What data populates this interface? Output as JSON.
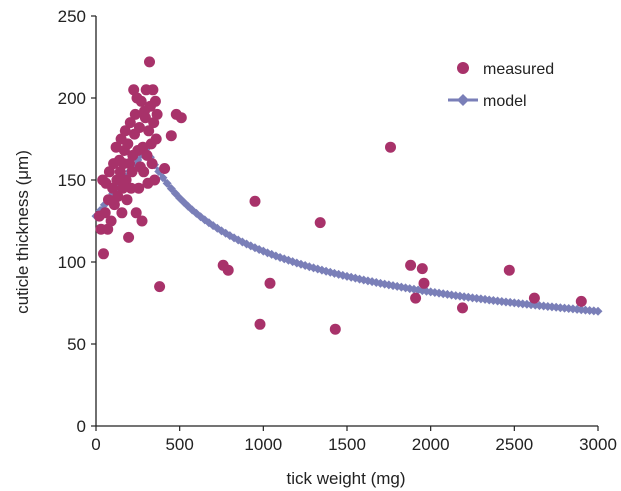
{
  "chart_data": {
    "type": "scatter",
    "xlabel": "tick weight (mg)",
    "ylabel": "cuticle thickness (μm)",
    "xlim": [
      0,
      3000
    ],
    "ylim": [
      0,
      250
    ],
    "xticks": [
      "0",
      "500",
      "1000",
      "1500",
      "2000",
      "2500",
      "3000"
    ],
    "yticks": [
      "0",
      "50",
      "100",
      "150",
      "200",
      "250"
    ],
    "grid": false,
    "legend_position": "top-right",
    "colors": {
      "measured": "#a8326a",
      "model": "#7a7fb8"
    },
    "series": [
      {
        "name": "measured",
        "kind": "scatter",
        "points": [
          [
            20,
            128
          ],
          [
            30,
            120
          ],
          [
            40,
            150
          ],
          [
            45,
            105
          ],
          [
            55,
            130
          ],
          [
            60,
            148
          ],
          [
            70,
            120
          ],
          [
            75,
            138
          ],
          [
            80,
            155
          ],
          [
            90,
            125
          ],
          [
            100,
            145
          ],
          [
            105,
            160
          ],
          [
            110,
            135
          ],
          [
            120,
            170
          ],
          [
            125,
            150
          ],
          [
            130,
            140
          ],
          [
            140,
            162
          ],
          [
            145,
            155
          ],
          [
            150,
            175
          ],
          [
            155,
            130
          ],
          [
            160,
            145
          ],
          [
            165,
            160
          ],
          [
            170,
            168
          ],
          [
            175,
            180
          ],
          [
            180,
            150
          ],
          [
            185,
            138
          ],
          [
            190,
            172
          ],
          [
            195,
            115
          ],
          [
            200,
            160
          ],
          [
            205,
            185
          ],
          [
            210,
            145
          ],
          [
            215,
            155
          ],
          [
            220,
            165
          ],
          [
            225,
            205
          ],
          [
            230,
            178
          ],
          [
            235,
            190
          ],
          [
            240,
            130
          ],
          [
            245,
            200
          ],
          [
            250,
            168
          ],
          [
            255,
            145
          ],
          [
            260,
            182
          ],
          [
            265,
            158
          ],
          [
            270,
            198
          ],
          [
            275,
            125
          ],
          [
            280,
            170
          ],
          [
            285,
            155
          ],
          [
            290,
            192
          ],
          [
            295,
            188
          ],
          [
            300,
            205
          ],
          [
            305,
            165
          ],
          [
            310,
            148
          ],
          [
            315,
            180
          ],
          [
            320,
            222
          ],
          [
            325,
            195
          ],
          [
            330,
            172
          ],
          [
            335,
            160
          ],
          [
            340,
            205
          ],
          [
            345,
            185
          ],
          [
            350,
            150
          ],
          [
            355,
            198
          ],
          [
            360,
            175
          ],
          [
            365,
            190
          ],
          [
            380,
            85
          ],
          [
            410,
            157
          ],
          [
            450,
            177
          ],
          [
            480,
            190
          ],
          [
            510,
            188
          ],
          [
            760,
            98
          ],
          [
            790,
            95
          ],
          [
            950,
            137
          ],
          [
            980,
            62
          ],
          [
            1040,
            87
          ],
          [
            1340,
            124
          ],
          [
            1430,
            59
          ],
          [
            1760,
            170
          ],
          [
            1880,
            98
          ],
          [
            1910,
            78
          ],
          [
            1950,
            96
          ],
          [
            1960,
            87
          ],
          [
            2190,
            72
          ],
          [
            2470,
            95
          ],
          [
            2620,
            78
          ],
          [
            2900,
            76
          ]
        ]
      },
      {
        "name": "model",
        "kind": "line",
        "peak_x": 300,
        "peak_y": 169,
        "start_y": 128,
        "end_x": 3000,
        "end_y": 70
      }
    ]
  }
}
